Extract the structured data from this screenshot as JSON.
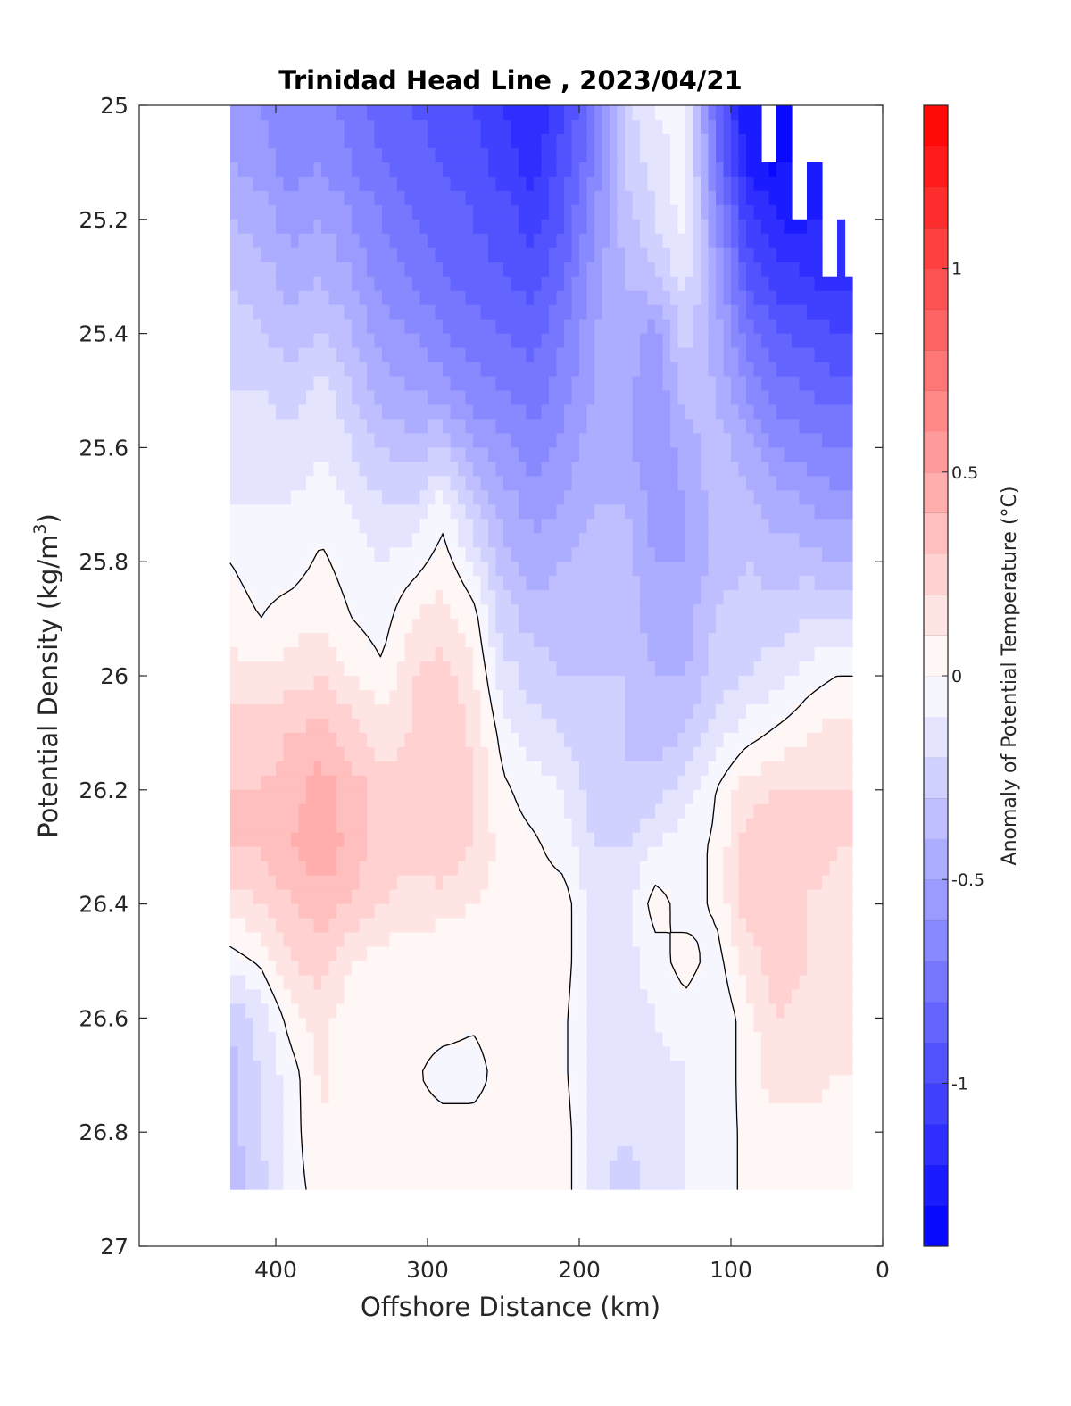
{
  "chart_data": {
    "type": "heatmap",
    "title": "Trinidad Head Line , 2023/04/21",
    "xlabel": "Offshore Distance (km)",
    "ylabel_prefix": "Potential Density (kg/m",
    "ylabel_sup": "3",
    "ylabel_suffix": ")",
    "colorbar_label": "Anomaly of Potential Temperature (°C)",
    "xlim": [
      490,
      0
    ],
    "x_reversed": true,
    "ylim": [
      25,
      27
    ],
    "y_reversed": true,
    "x_ticks": [
      400,
      300,
      200,
      100,
      0
    ],
    "y_ticks": [
      "25",
      "25.2",
      "25.4",
      "25.6",
      "25.8",
      "26",
      "26.2",
      "26.4",
      "26.6",
      "26.8",
      "27"
    ],
    "colorbar_range": [
      -1.4,
      1.4
    ],
    "colorbar_ticks": [
      {
        "value": 1,
        "label": "1"
      },
      {
        "value": 0.5,
        "label": "0.5"
      },
      {
        "value": 0,
        "label": "0"
      },
      {
        "value": -0.5,
        "label": "-0.5"
      },
      {
        "value": -1,
        "label": "-1"
      }
    ],
    "colorbar_levels": 28,
    "colormap": {
      "negative": "#0000ff",
      "zero": "#ffffff",
      "positive": "#ff0000"
    },
    "contour_level": 0,
    "data_extent": {
      "x": [
        430,
        20
      ],
      "y": [
        25,
        26.9
      ]
    },
    "anomaly_grid": {
      "x": [
        430,
        410,
        390,
        370,
        350,
        330,
        310,
        290,
        270,
        250,
        230,
        210,
        190,
        170,
        150,
        130,
        110,
        90,
        70,
        50,
        30,
        20
      ],
      "y": [
        25.0,
        25.1,
        25.2,
        25.3,
        25.4,
        25.5,
        25.6,
        25.7,
        25.8,
        25.9,
        26.0,
        26.1,
        26.2,
        26.3,
        26.4,
        26.5,
        26.6,
        26.7,
        26.8,
        26.9
      ],
      "values": [
        [
          -0.55,
          -0.6,
          -0.7,
          -0.65,
          -0.75,
          -0.85,
          -0.9,
          -0.95,
          -1.0,
          -1.1,
          -1.2,
          -1.0,
          -0.75,
          -0.25,
          -0.1,
          -0.05,
          -0.8,
          -1.3,
          null,
          null,
          null,
          null
        ],
        [
          -0.5,
          -0.55,
          -0.65,
          -0.6,
          -0.7,
          -0.8,
          -0.85,
          -0.9,
          -0.95,
          -1.05,
          -1.15,
          -0.95,
          -0.7,
          -0.3,
          -0.15,
          -0.05,
          -0.75,
          -1.2,
          -1.35,
          null,
          null,
          null
        ],
        [
          -0.4,
          -0.45,
          -0.55,
          -0.5,
          -0.6,
          -0.7,
          -0.8,
          -0.85,
          -0.9,
          -0.95,
          -1.05,
          -0.9,
          -0.6,
          -0.35,
          -0.2,
          -0.05,
          -0.6,
          -1.05,
          -1.2,
          -1.25,
          null,
          null
        ],
        [
          -0.3,
          -0.35,
          -0.45,
          -0.4,
          -0.5,
          -0.65,
          -0.7,
          -0.8,
          -0.85,
          -0.9,
          -0.95,
          -0.8,
          -0.55,
          -0.4,
          -0.3,
          -0.15,
          -0.5,
          -0.9,
          -1.05,
          -1.1,
          -1.15,
          -1.15
        ],
        [
          -0.25,
          -0.3,
          -0.35,
          -0.3,
          -0.4,
          -0.55,
          -0.6,
          -0.7,
          -0.75,
          -0.8,
          -0.85,
          -0.7,
          -0.5,
          -0.45,
          -0.55,
          -0.25,
          -0.45,
          -0.75,
          -0.9,
          -0.95,
          -1.0,
          -1.0
        ],
        [
          -0.2,
          -0.2,
          -0.25,
          -0.15,
          -0.3,
          -0.45,
          -0.5,
          -0.55,
          -0.65,
          -0.7,
          -0.75,
          -0.65,
          -0.5,
          -0.45,
          -0.6,
          -0.35,
          -0.4,
          -0.6,
          -0.75,
          -0.8,
          -0.85,
          -0.85
        ],
        [
          -0.15,
          -0.15,
          -0.15,
          -0.1,
          -0.2,
          -0.3,
          -0.35,
          -0.3,
          -0.5,
          -0.55,
          -0.65,
          -0.55,
          -0.45,
          -0.45,
          -0.6,
          -0.45,
          -0.35,
          -0.45,
          -0.6,
          -0.65,
          -0.7,
          -0.7
        ],
        [
          -0.1,
          -0.1,
          -0.1,
          -0.05,
          -0.1,
          -0.2,
          -0.2,
          -0.05,
          -0.3,
          -0.45,
          -0.55,
          -0.5,
          -0.4,
          -0.4,
          -0.55,
          -0.5,
          -0.35,
          -0.35,
          -0.45,
          -0.5,
          -0.55,
          -0.55
        ],
        [
          0.0,
          -0.05,
          -0.05,
          0.02,
          -0.05,
          -0.1,
          -0.05,
          0.05,
          -0.1,
          -0.35,
          -0.45,
          -0.4,
          -0.35,
          -0.35,
          -0.5,
          -0.5,
          -0.35,
          -0.3,
          -0.35,
          -0.35,
          -0.4,
          -0.4
        ],
        [
          0.05,
          0.0,
          0.05,
          0.08,
          0.0,
          -0.05,
          0.1,
          0.15,
          0.05,
          -0.25,
          -0.35,
          -0.35,
          -0.3,
          -0.35,
          -0.45,
          -0.45,
          -0.3,
          -0.25,
          -0.25,
          -0.2,
          -0.2,
          -0.2
        ],
        [
          0.15,
          0.12,
          0.15,
          0.2,
          0.1,
          0.02,
          0.2,
          0.25,
          0.12,
          -0.15,
          -0.25,
          -0.3,
          -0.3,
          -0.3,
          -0.4,
          -0.4,
          -0.25,
          -0.2,
          -0.15,
          -0.05,
          0.0,
          0.0
        ],
        [
          0.25,
          0.25,
          0.3,
          0.35,
          0.25,
          0.15,
          0.2,
          0.3,
          0.18,
          -0.05,
          -0.15,
          -0.2,
          -0.3,
          -0.3,
          -0.35,
          -0.3,
          -0.15,
          -0.05,
          0.02,
          0.08,
          0.15,
          0.15
        ],
        [
          0.3,
          0.3,
          0.35,
          0.45,
          0.35,
          0.25,
          0.25,
          0.3,
          0.2,
          0.02,
          -0.05,
          -0.1,
          -0.25,
          -0.3,
          -0.25,
          -0.15,
          0.0,
          0.15,
          0.2,
          0.2,
          0.2,
          0.2
        ],
        [
          0.3,
          0.3,
          0.4,
          0.5,
          0.35,
          0.25,
          0.25,
          0.3,
          0.2,
          0.05,
          0.02,
          -0.05,
          -0.2,
          -0.2,
          -0.1,
          -0.05,
          0.02,
          0.25,
          0.3,
          0.25,
          0.2,
          0.2
        ],
        [
          0.15,
          0.2,
          0.3,
          0.35,
          0.3,
          0.2,
          0.15,
          0.15,
          0.1,
          0.05,
          0.05,
          0.05,
          -0.15,
          -0.15,
          0.05,
          -0.05,
          0.02,
          0.25,
          0.3,
          0.2,
          0.15,
          0.15
        ],
        [
          -0.05,
          0.02,
          0.2,
          0.25,
          0.1,
          0.05,
          0.05,
          0.0,
          0.0,
          0.05,
          0.08,
          0.05,
          -0.15,
          -0.15,
          -0.05,
          0.05,
          -0.05,
          0.15,
          0.25,
          0.2,
          0.15,
          0.15
        ],
        [
          -0.3,
          -0.15,
          0.05,
          0.15,
          0.02,
          0.05,
          0.05,
          0.05,
          0.02,
          0.05,
          0.05,
          0.02,
          -0.15,
          -0.15,
          -0.1,
          -0.05,
          -0.1,
          0.05,
          0.2,
          0.15,
          0.15,
          0.15
        ],
        [
          -0.35,
          -0.2,
          -0.05,
          0.12,
          0.02,
          0.05,
          0.02,
          -0.05,
          -0.05,
          0.05,
          0.05,
          0.02,
          -0.15,
          -0.15,
          -0.15,
          -0.1,
          -0.1,
          0.05,
          0.15,
          0.15,
          0.1,
          0.1
        ],
        [
          -0.35,
          -0.2,
          -0.05,
          0.1,
          0.02,
          0.05,
          0.05,
          0.05,
          0.05,
          0.05,
          0.05,
          0.05,
          -0.15,
          -0.2,
          -0.15,
          -0.1,
          -0.05,
          0.02,
          0.05,
          0.05,
          0.05,
          0.05
        ],
        [
          -0.35,
          -0.25,
          -0.05,
          0.05,
          0.02,
          0.02,
          0.05,
          0.05,
          0.05,
          0.05,
          0.1,
          0.05,
          -0.15,
          -0.25,
          -0.15,
          -0.1,
          -0.05,
          0.02,
          0.05,
          0.05,
          0.05,
          0.05
        ]
      ]
    }
  }
}
